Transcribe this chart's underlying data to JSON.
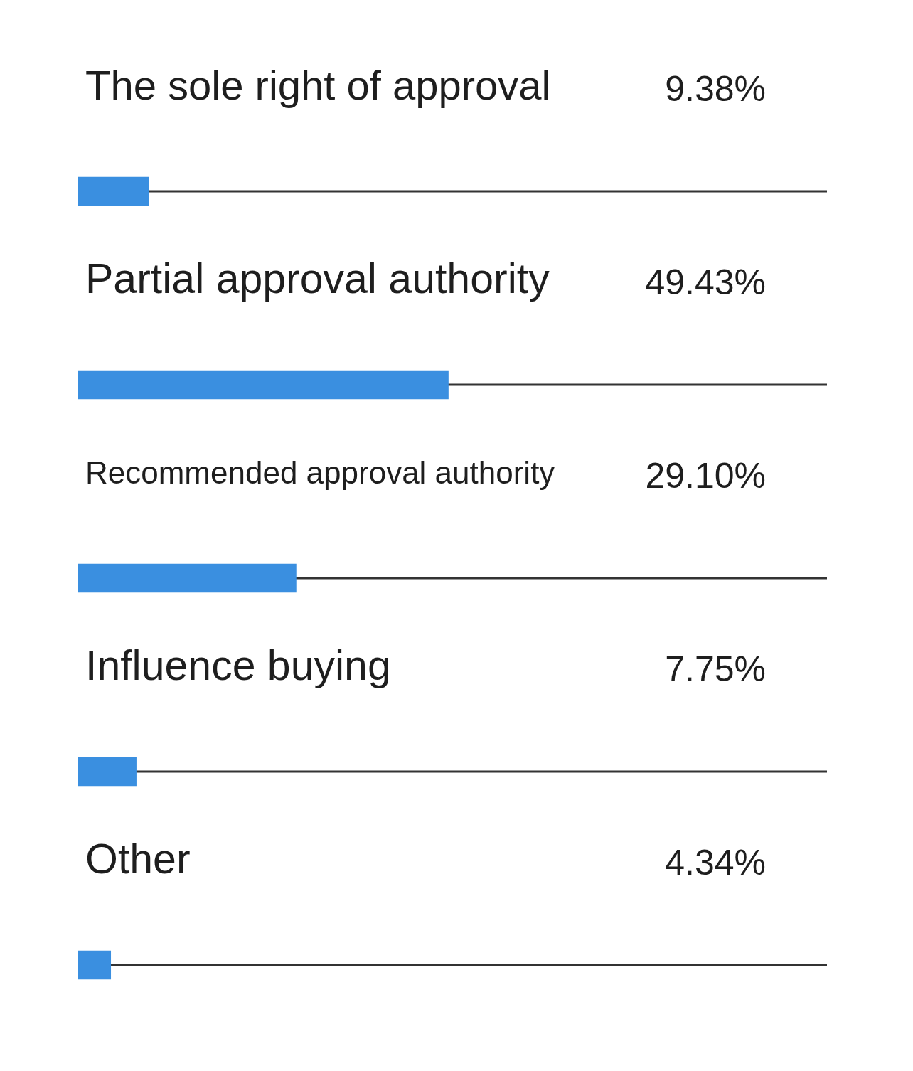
{
  "chart_data": {
    "type": "bar",
    "orientation": "horizontal",
    "categories": [
      "The sole right of approval",
      "Partial approval authority",
      "Recommended approval authority",
      "Influence buying",
      "Other"
    ],
    "values": [
      9.38,
      49.43,
      29.1,
      7.75,
      4.34
    ],
    "value_labels": [
      "9.38%",
      "49.43%",
      "29.10%",
      "7.75%",
      "4.34%"
    ],
    "color": "#3a8fe0",
    "xlim": [
      0,
      100
    ],
    "tick_labels": false,
    "legend": false
  }
}
